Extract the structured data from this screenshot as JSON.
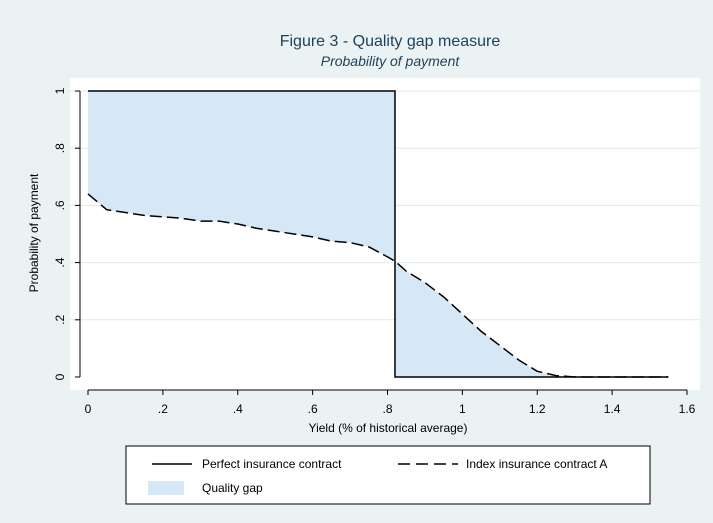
{
  "chart_data": {
    "type": "line",
    "title": "Figure 3 - Quality gap measure",
    "subtitle": "Probability of payment",
    "xlabel": "Yield (% of historical average)",
    "ylabel": "Probability of payment",
    "xlim": [
      0,
      1.6
    ],
    "ylim": [
      0,
      1
    ],
    "xticks": [
      {
        "value": 0,
        "label": "0"
      },
      {
        "value": 0.2,
        "label": ".2"
      },
      {
        "value": 0.4,
        "label": ".4"
      },
      {
        "value": 0.6,
        "label": ".6"
      },
      {
        "value": 0.8,
        "label": ".8"
      },
      {
        "value": 1.0,
        "label": "1"
      },
      {
        "value": 1.2,
        "label": "1.2"
      },
      {
        "value": 1.4,
        "label": "1.4"
      },
      {
        "value": 1.6,
        "label": "1.6"
      }
    ],
    "yticks": [
      {
        "value": 0,
        "label": "0"
      },
      {
        "value": 0.2,
        "label": ".2"
      },
      {
        "value": 0.4,
        "label": ".4"
      },
      {
        "value": 0.6,
        "label": ".6"
      },
      {
        "value": 0.8,
        "label": ".8"
      },
      {
        "value": 1.0,
        "label": "1"
      }
    ],
    "grid": true,
    "legend_position": "bottom",
    "series": [
      {
        "name": "Perfect insurance contract",
        "style": "solid",
        "color": "#000000",
        "x": [
          0,
          0.82,
          0.82,
          1.55
        ],
        "y": [
          1,
          1,
          0,
          0
        ]
      },
      {
        "name": "Index insurance contract A",
        "style": "dashed",
        "color": "#000000",
        "x": [
          0,
          0.05,
          0.1,
          0.15,
          0.2,
          0.25,
          0.3,
          0.35,
          0.4,
          0.45,
          0.5,
          0.55,
          0.6,
          0.65,
          0.7,
          0.75,
          0.8,
          0.82,
          0.85,
          0.9,
          0.95,
          1.0,
          1.05,
          1.1,
          1.15,
          1.2,
          1.25,
          1.3,
          1.4,
          1.55
        ],
        "y": [
          0.64,
          0.585,
          0.575,
          0.565,
          0.56,
          0.555,
          0.545,
          0.545,
          0.535,
          0.52,
          0.51,
          0.5,
          0.49,
          0.475,
          0.47,
          0.455,
          0.42,
          0.405,
          0.37,
          0.33,
          0.28,
          0.22,
          0.16,
          0.11,
          0.06,
          0.02,
          0.005,
          0,
          0,
          0
        ]
      }
    ],
    "shaded_area": {
      "name": "Quality gap",
      "color": "#d6e8f5"
    }
  }
}
